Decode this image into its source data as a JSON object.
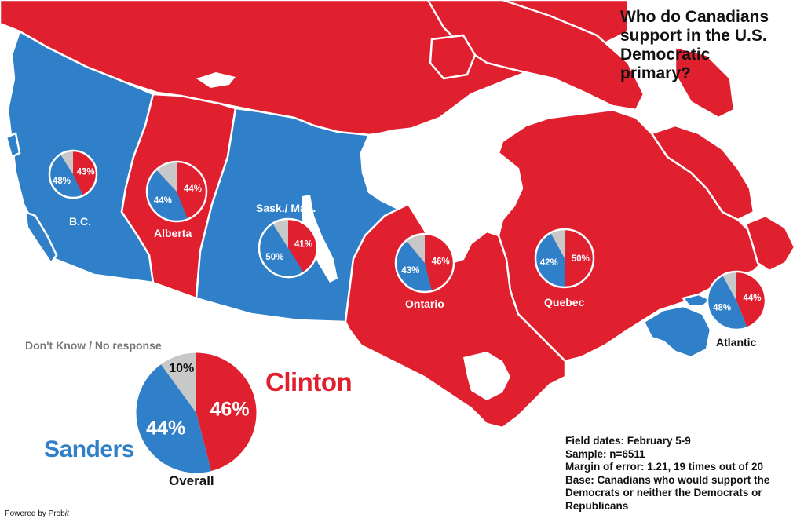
{
  "title": {
    "line1": "Who do Canadians",
    "line2": "support in the U.S.",
    "line3": "Democratic",
    "line4": "primary?"
  },
  "colors": {
    "clinton": "#e01f2f",
    "sanders": "#2f80c8",
    "dont_know": "#c8c8c8",
    "border": "#ffffff"
  },
  "legend": {
    "dont_know": "Don't Know / No response",
    "clinton": "Clinton",
    "sanders": "Sanders"
  },
  "overall": {
    "label": "Overall",
    "clinton": 46,
    "sanders": 44,
    "dont_know": 10,
    "clinton_text": "46%",
    "sanders_text": "44%",
    "dont_know_text": "10%"
  },
  "regions": [
    {
      "name": "B.C.",
      "winner": "sanders",
      "clinton": 43,
      "sanders": 48,
      "clinton_text": "43%",
      "sanders_text": "48%"
    },
    {
      "name": "Alberta",
      "winner": "clinton",
      "clinton": 44,
      "sanders": 44,
      "clinton_text": "44%",
      "sanders_text": "44%"
    },
    {
      "name": "Sask./ Man.",
      "winner": "sanders",
      "clinton": 41,
      "sanders": 50,
      "clinton_text": "41%",
      "sanders_text": "50%"
    },
    {
      "name": "Ontario",
      "winner": "clinton",
      "clinton": 46,
      "sanders": 43,
      "clinton_text": "46%",
      "sanders_text": "43%"
    },
    {
      "name": "Quebec",
      "winner": "clinton",
      "clinton": 50,
      "sanders": 42,
      "clinton_text": "50%",
      "sanders_text": "42%"
    },
    {
      "name": "Atlantic",
      "winner": "sanders",
      "clinton": 44,
      "sanders": 48,
      "clinton_text": "44%",
      "sanders_text": "48%"
    }
  ],
  "notes": {
    "field_dates": "Field dates: February 5-9",
    "sample": "Sample: n=6511",
    "margin": "Margin of error: 1.21, 19 times out of 20",
    "base_line1": "Base: Canadians who would support the",
    "base_line2": "Democrats or neither the Democrats or",
    "base_line3": "Republicans"
  },
  "credit": {
    "prefix": "Powered by Prob",
    "suffix": "it"
  }
}
